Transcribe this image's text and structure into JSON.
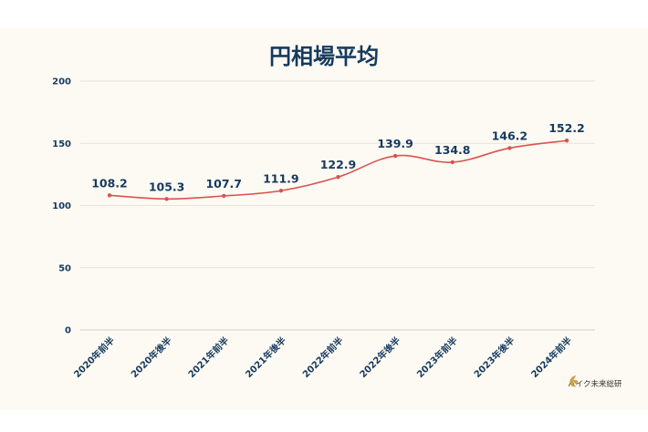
{
  "chart_data": {
    "type": "line",
    "title": "円相場平均",
    "categories": [
      "2020年前半",
      "2020年後半",
      "2021年前半",
      "2021年後半",
      "2022年前半",
      "2022年後半",
      "2023年前半",
      "2023年後半",
      "2024年前半"
    ],
    "series": [
      {
        "values": [
          108.2,
          105.3,
          107.7,
          111.9,
          122.9,
          139.9,
          134.8,
          146.2,
          152.2
        ]
      }
    ],
    "data_labels": [
      "108.2",
      "105.3",
      "107.7",
      "111.9",
      "122.9",
      "139.9",
      "134.8",
      "146.2",
      "152.2"
    ],
    "y_ticks": [
      0,
      50,
      100,
      150,
      200
    ],
    "ylim": [
      0,
      200
    ],
    "grid": true,
    "line_color": "#d9534f",
    "label_color": "#163a5f",
    "axis_color": "#163a5f"
  },
  "brand": {
    "name": "バイク未来総研"
  }
}
